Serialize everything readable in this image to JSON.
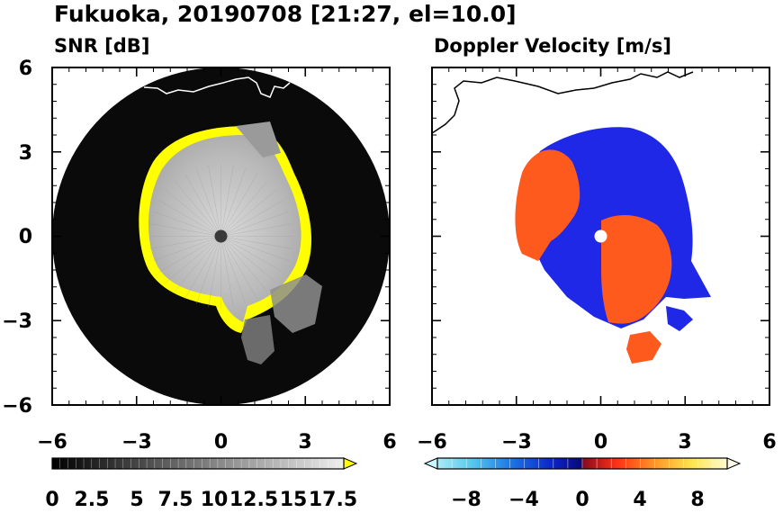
{
  "figure": {
    "title": "Fukuoka, 20190708 [21:27, el=10.0]"
  },
  "chart_data": [
    {
      "type": "heatmap",
      "title": "SNR [dB]",
      "xlim": [
        -6,
        6
      ],
      "ylim": [
        -6,
        6
      ],
      "xticks": [
        "−6",
        "−3",
        "0",
        "3",
        "6"
      ],
      "yticks": [
        "6",
        "3",
        "0",
        "−3",
        "−6"
      ],
      "range_ring_radius": 6,
      "colorbar": {
        "ticks": [
          "0",
          "2.5",
          "5",
          "7.5",
          "10",
          "12.5",
          "15",
          "17.5"
        ],
        "min": 0,
        "max": 18.5,
        "extend": "max",
        "colormap": "grayscale",
        "over_color": "#ffff00"
      },
      "colors": {
        "background": "#000000",
        "echo": "#bdbdbd",
        "edge": "#ffff00",
        "coastline": "#ffffff"
      }
    },
    {
      "type": "heatmap",
      "title": "Doppler Velocity [m/s]",
      "xlim": [
        -6,
        6
      ],
      "ylim": [
        -6,
        6
      ],
      "xticks": [
        "−6",
        "−3",
        "0",
        "3",
        "6"
      ],
      "yticks": [
        "6",
        "3",
        "0",
        "−3",
        "−6"
      ],
      "colorbar": {
        "ticks": [
          "−8",
          "−4",
          "0",
          "4",
          "8"
        ],
        "min": -10,
        "max": 10,
        "extend": "both",
        "colormap": "blue-red diverging"
      },
      "colors": {
        "approaching": "#1e28e6",
        "receding": "#ff5a1e",
        "coastline": "#000000"
      }
    }
  ]
}
